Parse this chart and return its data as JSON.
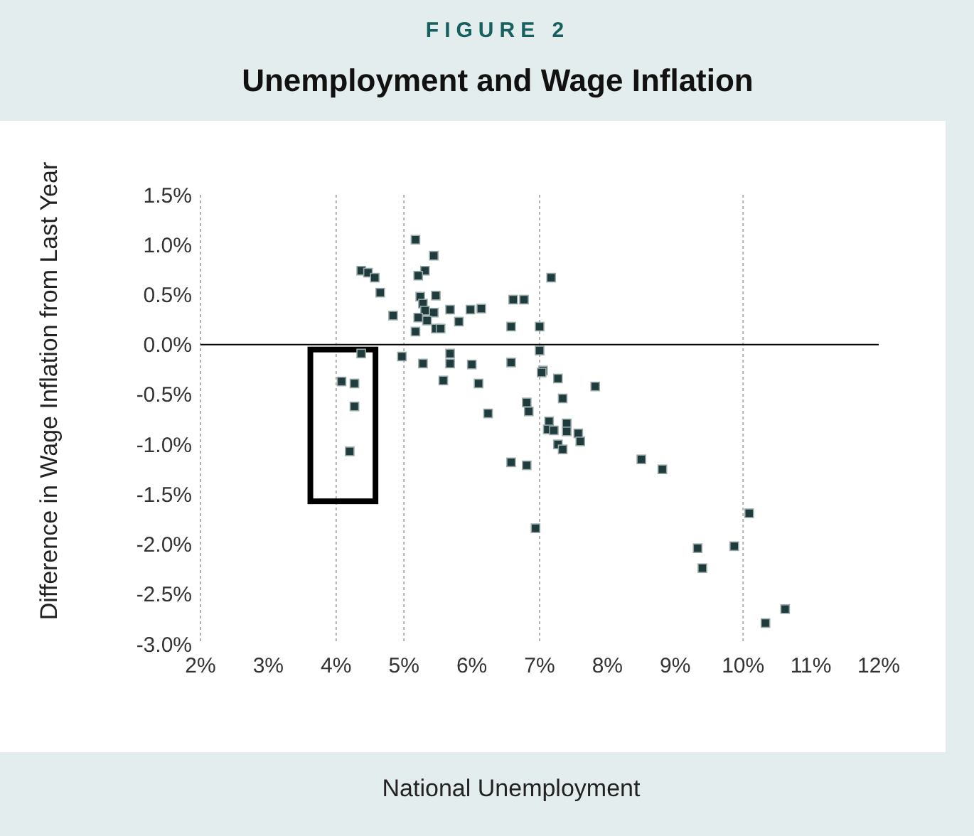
{
  "chart_data": {
    "type": "scatter",
    "title": "Unemployment and Wage Inflation",
    "annotations": [
      "FIGURE 2"
    ],
    "xlabel": "National Unemployment",
    "ylabel": "Difference in Wage Inflation from Last Year",
    "x": [
      5.17,
      5.44,
      4.37,
      4.47,
      4.57,
      5.31,
      5.21,
      7.17,
      4.65,
      5.24,
      5.47,
      5.28,
      5.31,
      5.44,
      4.84,
      5.21,
      5.34,
      5.68,
      5.98,
      6.14,
      5.81,
      6.61,
      6.77,
      5.47,
      5.54,
      5.17,
      6.58,
      7.0,
      4.37,
      4.97,
      5.68,
      7.0,
      5.28,
      5.68,
      6.0,
      6.58,
      7.05,
      7.03,
      7.27,
      7.82,
      4.08,
      4.27,
      5.58,
      6.1,
      7.34,
      4.27,
      6.24,
      6.81,
      6.84,
      7.14,
      7.12,
      7.21,
      7.4,
      7.4,
      7.57,
      7.6,
      7.27,
      7.34,
      4.2,
      6.58,
      6.81,
      6.94,
      8.5,
      8.81,
      10.09,
      9.87,
      9.33,
      9.4,
      10.62,
      10.33
    ],
    "values": [
      1.05,
      0.89,
      0.74,
      0.72,
      0.67,
      0.74,
      0.69,
      0.67,
      0.52,
      0.48,
      0.49,
      0.41,
      0.34,
      0.32,
      0.29,
      0.27,
      0.24,
      0.35,
      0.35,
      0.36,
      0.23,
      0.45,
      0.45,
      0.16,
      0.16,
      0.13,
      0.18,
      0.18,
      -0.09,
      -0.12,
      -0.09,
      -0.06,
      -0.19,
      -0.19,
      -0.2,
      -0.18,
      -0.26,
      -0.28,
      -0.34,
      -0.42,
      -0.37,
      -0.39,
      -0.36,
      -0.39,
      -0.54,
      -0.62,
      -0.69,
      -0.58,
      -0.67,
      -0.77,
      -0.85,
      -0.86,
      -0.79,
      -0.87,
      -0.89,
      -0.97,
      -1.0,
      -1.05,
      -1.07,
      -1.18,
      -1.21,
      -1.84,
      -1.15,
      -1.25,
      -1.69,
      -2.02,
      -2.04,
      -2.24,
      -2.65,
      -2.79
    ],
    "color": "#1f3b3b",
    "marker": "square",
    "xlim": [
      2,
      12
    ],
    "xticks": [
      {
        "value": 2,
        "label": "2%"
      },
      {
        "value": 3,
        "label": "3%"
      },
      {
        "value": 4,
        "label": "4%"
      },
      {
        "value": 5,
        "label": "5%"
      },
      {
        "value": 6,
        "label": "6%"
      },
      {
        "value": 7,
        "label": "7%"
      },
      {
        "value": 8,
        "label": "8%"
      },
      {
        "value": 9,
        "label": "9%"
      },
      {
        "value": 10,
        "label": "10%"
      },
      {
        "value": 11,
        "label": "11%"
      },
      {
        "value": 12,
        "label": "12%"
      }
    ],
    "ylim": [
      -3,
      1.5
    ],
    "yticks": [
      {
        "value": 1.5,
        "label": "1.5%"
      },
      {
        "value": 1,
        "label": "1.0%"
      },
      {
        "value": 0.5,
        "label": "0.5%"
      },
      {
        "value": 0,
        "label": "0.0%"
      },
      {
        "value": -0.5,
        "label": "-0.5%"
      },
      {
        "value": -1,
        "label": "-1.0%"
      },
      {
        "value": -1.5,
        "label": "-1.5%"
      },
      {
        "value": -2,
        "label": "-2.0%"
      },
      {
        "value": -2.5,
        "label": "-2.5%"
      },
      {
        "value": -3,
        "label": "-3.0%"
      }
    ],
    "ref_lines": [
      {
        "axis": "x",
        "value": 4,
        "color": "#b0b0b0",
        "line_style": "dotted"
      },
      {
        "axis": "x",
        "value": 5,
        "color": "#b0b0b0",
        "line_style": "dotted"
      },
      {
        "axis": "x",
        "value": 7,
        "color": "#b0b0b0",
        "line_style": "dotted"
      },
      {
        "axis": "x",
        "value": 10,
        "color": "#b0b0b0",
        "line_style": "dotted"
      },
      {
        "axis": "y",
        "value": 0,
        "color": "#000000",
        "line_style": "solid"
      }
    ]
  }
}
